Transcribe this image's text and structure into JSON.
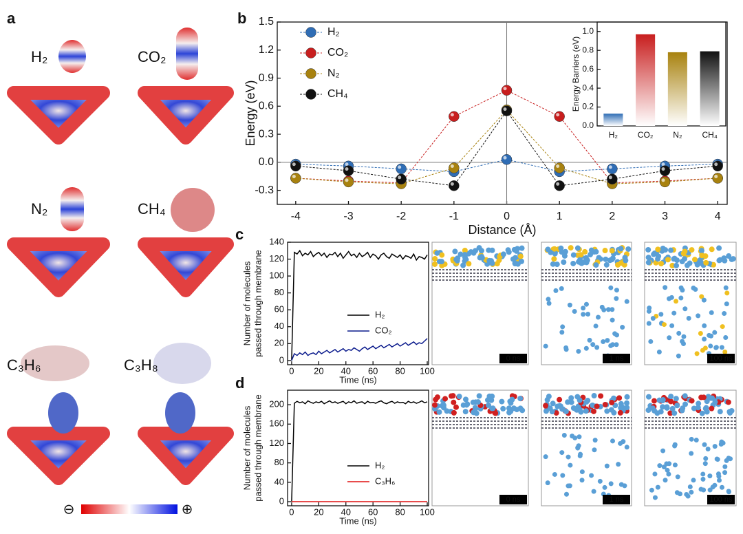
{
  "panel_labels": [
    "a",
    "b",
    "c",
    "d"
  ],
  "molecules": [
    "H₂",
    "CO₂",
    "N₂",
    "CH₄",
    "C₃H₆",
    "C₃H₈"
  ],
  "colorbar": [
    "⊖",
    "⊕"
  ],
  "snapshots": [
    "0 ns",
    "1 ns",
    "100 ns"
  ],
  "chart_data": [
    {
      "type": "line",
      "markers": true,
      "dashed": true,
      "xlabel": "Distance (Å)",
      "ylabel": "Energy (eV)",
      "x": [
        -4,
        -3,
        -2,
        -1,
        0,
        1,
        2,
        3,
        4
      ],
      "xlim": [
        -4.35,
        4.18
      ],
      "xticks": [
        -4,
        -3,
        -2,
        -1,
        0,
        1,
        2,
        3,
        4
      ],
      "ylim": [
        -0.45,
        1.5
      ],
      "yticks": [
        -0.3,
        {
          "value": 0,
          "label": "0.0"
        },
        0.3,
        0.6,
        0.9,
        1.2,
        1.5
      ],
      "series": [
        {
          "name": "H₂",
          "color": "#2f6db5",
          "values": [
            -0.02,
            -0.04,
            -0.07,
            -0.1,
            0.03,
            -0.1,
            -0.07,
            -0.04,
            -0.02
          ]
        },
        {
          "name": "CO₂",
          "color": "#c81e1e",
          "values": [
            -0.17,
            -0.2,
            -0.22,
            0.49,
            0.77,
            0.49,
            -0.22,
            -0.2,
            -0.17
          ]
        },
        {
          "name": "N₂",
          "color": "#a8820f",
          "values": [
            -0.17,
            -0.21,
            -0.23,
            -0.06,
            0.56,
            -0.06,
            -0.23,
            -0.21,
            -0.17
          ]
        },
        {
          "name": "CH₄",
          "color": "#111111",
          "values": [
            -0.04,
            -0.09,
            -0.18,
            -0.25,
            0.55,
            -0.25,
            -0.18,
            -0.09,
            -0.04
          ]
        }
      ]
    },
    {
      "type": "bar",
      "ylabel": "Energy Barriers (eV)",
      "categories": [
        "H₂",
        "CO₂",
        "N₂",
        "CH₄"
      ],
      "values": [
        0.13,
        0.97,
        0.78,
        0.79
      ],
      "colors": [
        "#2f6db5",
        "#c81e1e",
        "#a8820f",
        "#111111"
      ],
      "ylim": [
        0,
        1.1
      ],
      "yticks": [
        {
          "value": 0,
          "label": "0.0"
        },
        0.2,
        0.4,
        0.6,
        0.8,
        {
          "value": 1,
          "label": "1.0"
        }
      ]
    },
    {
      "type": "line",
      "xlabel": "Time (ns)",
      "ylabel": [
        "Number of molecules",
        "passed through membrane"
      ],
      "x": [
        0,
        2,
        4,
        6,
        8,
        10,
        12,
        14,
        16,
        18,
        20,
        22,
        24,
        26,
        28,
        30,
        32,
        34,
        36,
        38,
        40,
        42,
        44,
        46,
        48,
        50,
        52,
        54,
        56,
        58,
        60,
        62,
        64,
        66,
        68,
        70,
        72,
        74,
        76,
        78,
        80,
        82,
        84,
        86,
        88,
        90,
        92,
        94,
        96,
        98,
        100
      ],
      "xlim": [
        -3,
        101
      ],
      "xticks": [
        0,
        20,
        40,
        60,
        80,
        100
      ],
      "ylim": [
        -5,
        140
      ],
      "yticks": [
        0,
        20,
        40,
        60,
        80,
        100,
        120,
        140
      ],
      "series": [
        {
          "name": "H₂",
          "color": "#000000",
          "values": [
            0,
            128,
            126,
            130,
            124,
            127,
            125,
            129,
            123,
            126,
            128,
            124,
            127,
            122,
            126,
            125,
            128,
            123,
            127,
            121,
            125,
            129,
            124,
            126,
            122,
            127,
            123,
            125,
            128,
            122,
            126,
            124,
            120,
            125,
            127,
            123,
            121,
            126,
            124,
            122,
            125,
            120,
            124,
            123,
            121,
            126,
            119,
            123,
            122,
            120,
            125
          ]
        },
        {
          "name": "CO₂",
          "color": "#0a1a8c",
          "values": [
            0,
            8,
            6,
            9,
            7,
            10,
            6,
            8,
            9,
            7,
            11,
            8,
            10,
            12,
            9,
            11,
            13,
            10,
            12,
            14,
            11,
            13,
            12,
            15,
            13,
            11,
            14,
            16,
            13,
            15,
            17,
            14,
            16,
            18,
            15,
            17,
            19,
            16,
            18,
            20,
            17,
            19,
            21,
            18,
            20,
            22,
            19,
            21,
            20,
            23,
            26
          ]
        }
      ]
    },
    {
      "type": "line",
      "xlabel": "Time (ns)",
      "ylabel": [
        "Number of molecules",
        "passed through membrane"
      ],
      "x": [
        0,
        2,
        4,
        6,
        8,
        10,
        12,
        14,
        16,
        18,
        20,
        22,
        24,
        26,
        28,
        30,
        32,
        34,
        36,
        38,
        40,
        42,
        44,
        46,
        48,
        50,
        52,
        54,
        56,
        58,
        60,
        62,
        64,
        66,
        68,
        70,
        72,
        74,
        76,
        78,
        80,
        82,
        84,
        86,
        88,
        90,
        92,
        94,
        96,
        98,
        100
      ],
      "xlim": [
        -3,
        101
      ],
      "xticks": [
        0,
        20,
        40,
        60,
        80,
        100
      ],
      "ylim": [
        -8.5,
        230
      ],
      "yticks": [
        0,
        40,
        80,
        120,
        160,
        200
      ],
      "series": [
        {
          "name": "H₂",
          "color": "#000000",
          "values": [
            0,
            203,
            207,
            204,
            206,
            202,
            208,
            205,
            203,
            206,
            204,
            207,
            202,
            205,
            208,
            204,
            206,
            203,
            205,
            207,
            202,
            206,
            204,
            208,
            203,
            205,
            206,
            202,
            207,
            204,
            205,
            203,
            206,
            208,
            204,
            202,
            205,
            207,
            203,
            206,
            204,
            205,
            202,
            207,
            204,
            206,
            203,
            205,
            208,
            204,
            206
          ]
        },
        {
          "name": "C₃H₆",
          "color": "#e01010",
          "values": [
            0,
            0,
            0,
            0,
            0,
            0,
            0,
            0,
            0,
            0,
            0,
            0,
            0,
            0,
            0,
            0,
            0,
            0,
            0,
            0,
            0,
            0,
            0,
            0,
            0,
            0,
            0,
            0,
            0,
            0,
            0,
            0,
            0,
            0,
            0,
            0,
            0,
            0,
            0,
            0,
            0,
            0,
            0,
            0,
            0,
            0,
            0,
            0,
            0,
            0,
            0
          ]
        }
      ]
    }
  ]
}
